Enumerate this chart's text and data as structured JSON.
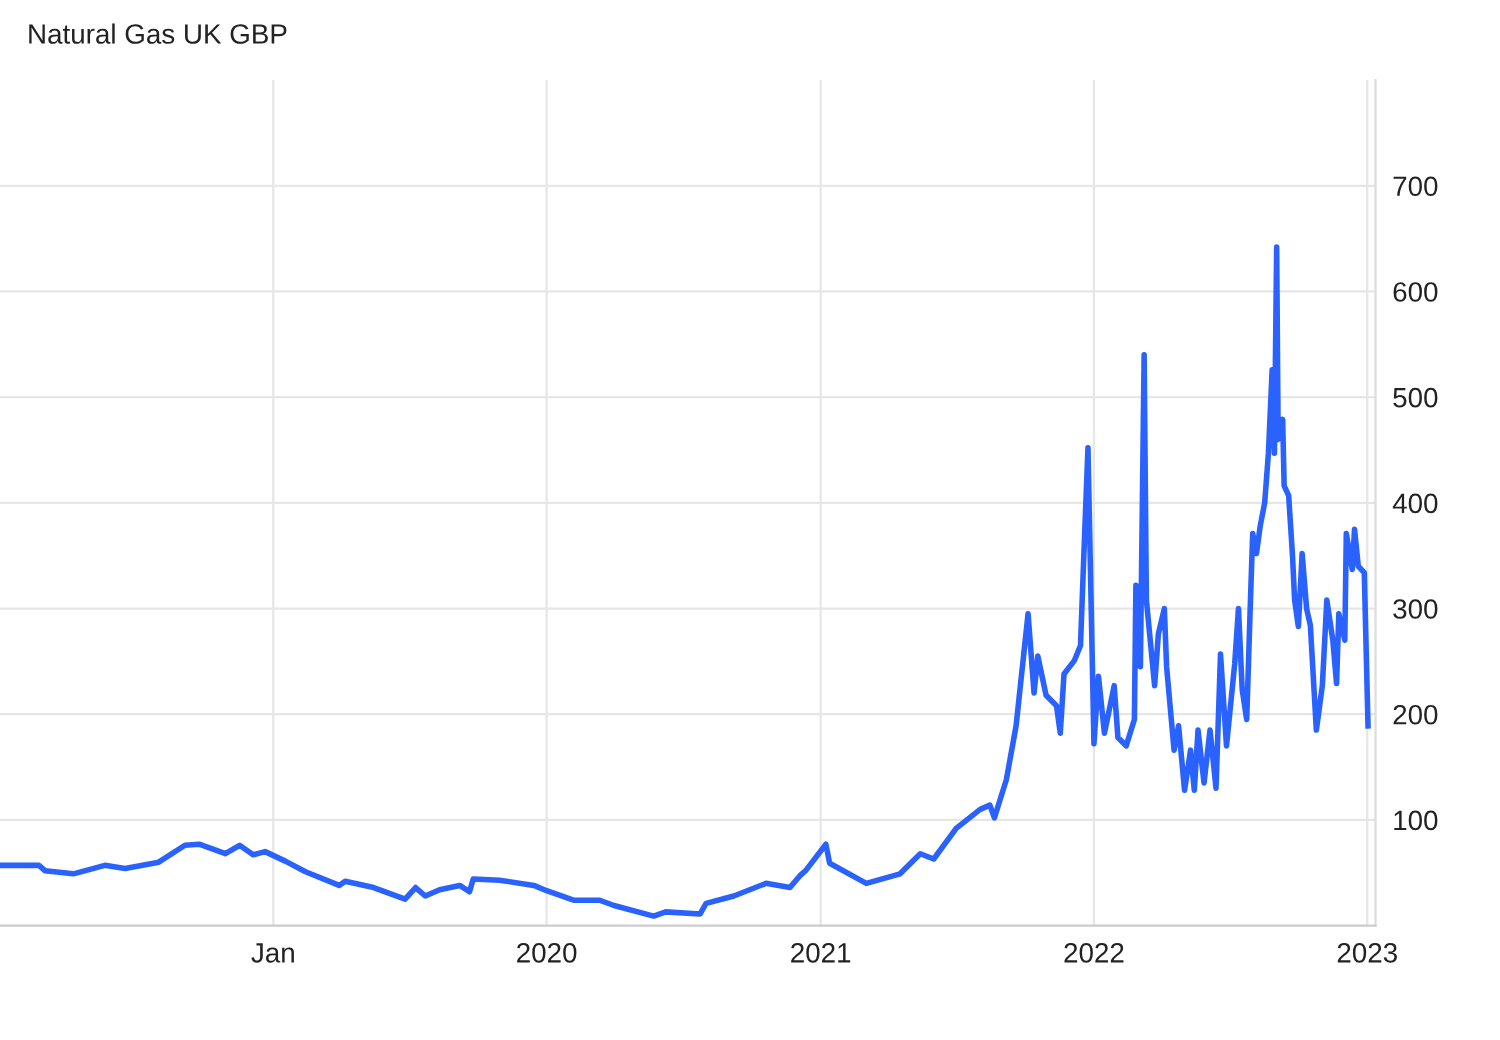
{
  "chart_data": {
    "type": "line",
    "title": "Natural Gas UK GBP",
    "x": [
      "2018-01-01",
      "2018-02-22",
      "2018-03-02",
      "2018-04-09",
      "2018-05-21",
      "2018-06-17",
      "2018-08-01",
      "2018-09-05",
      "2018-09-24",
      "2018-10-29",
      "2018-11-17",
      "2018-12-05",
      "2018-12-21",
      "2019-01-17",
      "2019-02-13",
      "2019-03-30",
      "2019-04-07",
      "2019-05-15",
      "2019-06-26",
      "2019-07-10",
      "2019-07-23",
      "2019-08-11",
      "2019-09-07",
      "2019-09-20",
      "2019-09-25",
      "2019-10-30",
      "2019-12-15",
      "2020-01-01",
      "2020-02-06",
      "2020-03-12",
      "2020-03-31",
      "2020-05-23",
      "2020-06-08",
      "2020-07-24",
      "2020-08-01",
      "2020-09-07",
      "2020-10-20",
      "2020-11-21",
      "2020-12-04",
      "2020-12-12",
      "2021-01-08",
      "2021-01-13",
      "2021-03-03",
      "2021-04-17",
      "2021-05-14",
      "2021-06-01",
      "2021-07-01",
      "2021-08-02",
      "2021-08-15",
      "2021-08-21",
      "2021-09-06",
      "2021-09-19",
      "2021-10-05",
      "2021-10-13",
      "2021-10-18",
      "2021-10-29",
      "2021-11-12",
      "2021-11-17",
      "2021-11-22",
      "2021-12-06",
      "2021-12-14",
      "2021-12-19",
      "2021-12-24",
      "2022-01-01",
      "2022-01-07",
      "2022-01-15",
      "2022-01-28",
      "2022-02-02",
      "2022-02-13",
      "2022-02-24",
      "2022-02-26",
      "2022-03-04",
      "2022-03-09",
      "2022-03-12",
      "2022-03-23",
      "2022-03-28",
      "2022-04-05",
      "2022-04-08",
      "2022-04-18",
      "2022-04-24",
      "2022-05-02",
      "2022-05-10",
      "2022-05-15",
      "2022-05-20",
      "2022-05-28",
      "2022-06-05",
      "2022-06-13",
      "2022-06-19",
      "2022-06-27",
      "2022-07-08",
      "2022-07-13",
      "2022-07-18",
      "2022-07-24",
      "2022-07-29",
      "2022-08-01",
      "2022-08-06",
      "2022-08-11",
      "2022-08-17",
      "2022-08-22",
      "2022-08-27",
      "2022-08-30",
      "2022-09-02",
      "2022-09-04",
      "2022-09-10",
      "2022-09-12",
      "2022-09-18",
      "2022-09-23",
      "2022-09-26",
      "2022-10-01",
      "2022-10-06",
      "2022-10-12",
      "2022-10-17",
      "2022-10-25",
      "2022-11-02",
      "2022-11-08",
      "2022-11-16",
      "2022-11-21",
      "2022-11-24",
      "2022-12-02",
      "2022-12-04",
      "2022-12-12",
      "2022-12-15",
      "2022-12-20",
      "2022-12-28",
      "2023-01-02"
    ],
    "series": [
      {
        "color": "#2962ff",
        "values": [
          57,
          57,
          52,
          49,
          57,
          54,
          60,
          76,
          77,
          68,
          76,
          67,
          70,
          61,
          51,
          38,
          42,
          36,
          25,
          36,
          28,
          34,
          38,
          32,
          44,
          43,
          38,
          33,
          24,
          24,
          19,
          9,
          13,
          11,
          21,
          28,
          40,
          36,
          47,
          52,
          77,
          59,
          40,
          49,
          68,
          63,
          92,
          110,
          114,
          102,
          138,
          189,
          295,
          220,
          255,
          218,
          208,
          182,
          238,
          251,
          265,
          360,
          452,
          172,
          236,
          182,
          227,
          178,
          170,
          195,
          322,
          245,
          540,
          308,
          227,
          276,
          300,
          245,
          166,
          189,
          128,
          166,
          128,
          185,
          135,
          185,
          130,
          257,
          170,
          248,
          300,
          223,
          195,
          308,
          371,
          352,
          378,
          400,
          447,
          526,
          447,
          642,
          460,
          479,
          416,
          407,
          352,
          308,
          283,
          352,
          300,
          284,
          185,
          227,
          308,
          270,
          229,
          295,
          270,
          371,
          337,
          375,
          340,
          334,
          189
        ]
      }
    ],
    "xlim": [
      "2018-01-01",
      "2023-01-12"
    ],
    "xticks": [
      {
        "value": "2019-01-01",
        "label": "Jan"
      },
      {
        "value": "2020-01-01",
        "label": "2020"
      },
      {
        "value": "2021-01-01",
        "label": "2021"
      },
      {
        "value": "2022-01-01",
        "label": "2022"
      },
      {
        "value": "2023-01-01",
        "label": "2023"
      }
    ],
    "ylim": [
      0,
      800
    ],
    "yticks": [
      100,
      200,
      300,
      400,
      500,
      600,
      700
    ],
    "grid": true,
    "marker": "none",
    "line_style": "solid"
  }
}
